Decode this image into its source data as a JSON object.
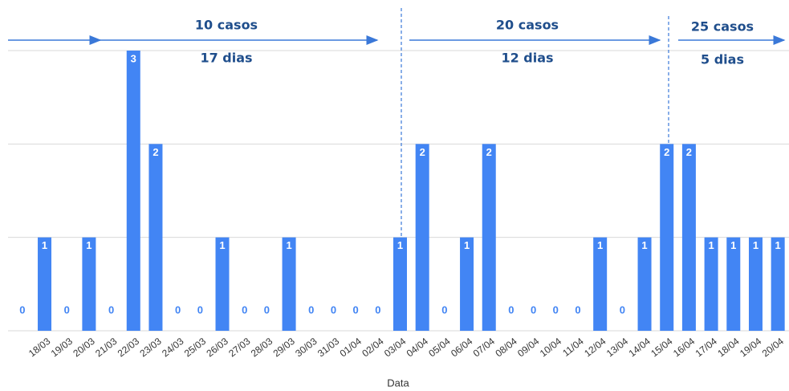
{
  "chart_data": {
    "type": "bar",
    "xlabel": "Data",
    "categories": [
      null,
      "18/03",
      "19/03",
      "20/03",
      "21/03",
      "22/03",
      "23/03",
      "24/03",
      "25/03",
      "26/03",
      "27/03",
      "28/03",
      "29/03",
      "30/03",
      "31/03",
      "01/04",
      "02/04",
      "03/04",
      "04/04",
      "05/04",
      "06/04",
      "07/04",
      "08/04",
      "09/04",
      "10/04",
      "11/04",
      "12/04",
      "13/04",
      "14/04",
      "15/04",
      "16/04",
      "17/04",
      "18/04",
      "19/04",
      "20/04"
    ],
    "values": [
      0,
      1,
      0,
      1,
      0,
      3,
      2,
      0,
      0,
      1,
      0,
      0,
      1,
      0,
      0,
      0,
      0,
      1,
      2,
      0,
      1,
      2,
      0,
      0,
      0,
      0,
      1,
      0,
      1,
      2,
      2,
      1,
      1,
      1,
      1
    ],
    "color": "#4285f4",
    "ylim": [
      0,
      3
    ],
    "yticks": [
      0,
      1,
      2,
      3
    ],
    "grid": true,
    "annotations": [
      "10 casos",
      "17 dias",
      "20 casos",
      "12 dias",
      "25 casos",
      "5 dias"
    ]
  }
}
